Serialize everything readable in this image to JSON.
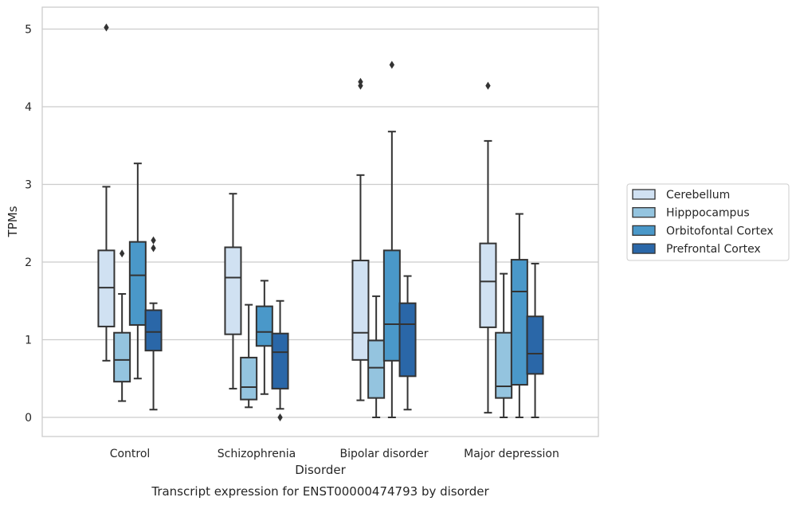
{
  "chart_data": {
    "type": "boxplot",
    "caption": "Transcript expression for ENST00000474793 by disorder",
    "xlabel": "Disorder",
    "ylabel": "TPMs",
    "ylim": [
      -0.24,
      5.28
    ],
    "yticks": [
      0,
      1,
      2,
      3,
      4,
      5
    ],
    "grid": "horizontal",
    "legend_position": "right",
    "categories": [
      "Control",
      "Schizophrenia",
      "Bipolar disorder",
      "Major depression"
    ],
    "series": [
      {
        "name": "Cerebellum",
        "color": "#d0e1f2",
        "boxes": [
          {
            "whislo": 0.73,
            "q1": 1.17,
            "med": 1.67,
            "q3": 2.15,
            "whishi": 2.97,
            "fliers": [
              5.02
            ]
          },
          {
            "whislo": 0.37,
            "q1": 1.07,
            "med": 1.8,
            "q3": 2.19,
            "whishi": 2.88,
            "fliers": []
          },
          {
            "whislo": 0.22,
            "q1": 0.74,
            "med": 1.09,
            "q3": 2.02,
            "whishi": 3.12,
            "fliers": [
              4.27,
              4.32
            ]
          },
          {
            "whislo": 0.06,
            "q1": 1.16,
            "med": 1.75,
            "q3": 2.24,
            "whishi": 3.56,
            "fliers": [
              4.27
            ]
          }
        ]
      },
      {
        "name": "Hipppocampus",
        "color": "#94c4df",
        "boxes": [
          {
            "whislo": 0.21,
            "q1": 0.46,
            "med": 0.74,
            "q3": 1.09,
            "whishi": 1.59,
            "fliers": [
              2.11
            ]
          },
          {
            "whislo": 0.13,
            "q1": 0.23,
            "med": 0.39,
            "q3": 0.77,
            "whishi": 1.45,
            "fliers": []
          },
          {
            "whislo": 0.0,
            "q1": 0.25,
            "med": 0.64,
            "q3": 0.99,
            "whishi": 1.56,
            "fliers": []
          },
          {
            "whislo": 0.0,
            "q1": 0.25,
            "med": 0.4,
            "q3": 1.09,
            "whishi": 1.85,
            "fliers": []
          }
        ]
      },
      {
        "name": "Orbitofontal Cortex",
        "color": "#4a98c9",
        "boxes": [
          {
            "whislo": 0.5,
            "q1": 1.19,
            "med": 1.83,
            "q3": 2.26,
            "whishi": 3.27,
            "fliers": []
          },
          {
            "whislo": 0.3,
            "q1": 0.92,
            "med": 1.1,
            "q3": 1.43,
            "whishi": 1.76,
            "fliers": []
          },
          {
            "whislo": 0.0,
            "q1": 0.73,
            "med": 1.2,
            "q3": 2.15,
            "whishi": 3.68,
            "fliers": [
              4.54
            ]
          },
          {
            "whislo": 0.0,
            "q1": 0.42,
            "med": 1.62,
            "q3": 2.03,
            "whishi": 2.62,
            "fliers": []
          }
        ]
      },
      {
        "name": "Prefrontal Cortex",
        "color": "#2a67a8",
        "boxes": [
          {
            "whislo": 0.1,
            "q1": 0.86,
            "med": 1.1,
            "q3": 1.38,
            "whishi": 1.47,
            "fliers": [
              2.18,
              2.28
            ]
          },
          {
            "whislo": 0.11,
            "q1": 0.37,
            "med": 0.84,
            "q3": 1.08,
            "whishi": 1.5,
            "fliers": [
              0.0
            ]
          },
          {
            "whislo": 0.1,
            "q1": 0.53,
            "med": 1.2,
            "q3": 1.47,
            "whishi": 1.82,
            "fliers": []
          },
          {
            "whislo": 0.0,
            "q1": 0.56,
            "med": 0.82,
            "q3": 1.3,
            "whishi": 1.98,
            "fliers": []
          }
        ]
      }
    ],
    "style": {
      "line_color": "#333333",
      "grid_color": "#cccccc",
      "spine_color": "#cccccc"
    }
  }
}
